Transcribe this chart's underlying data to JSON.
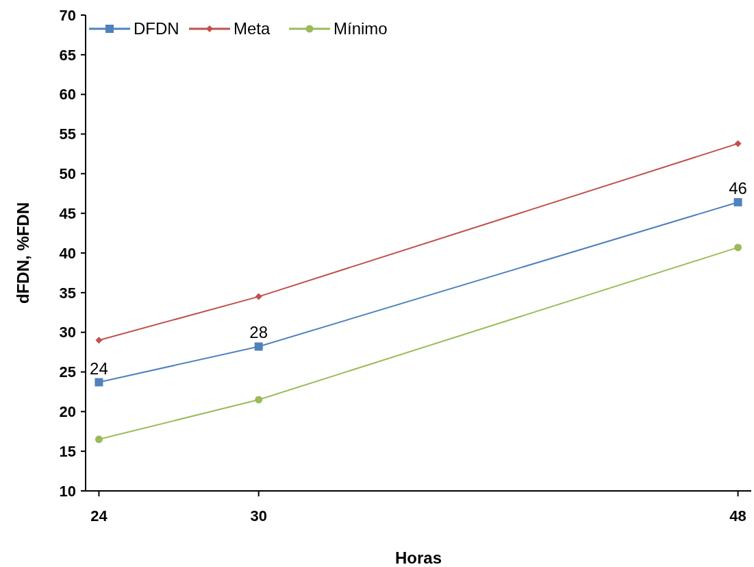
{
  "chart_data": {
    "type": "line",
    "xlabel": "Horas",
    "ylabel": "dFDN, %FDN",
    "x": [
      24,
      30,
      48
    ],
    "xlim": [
      23.5,
      48.5
    ],
    "xticks": [
      24,
      30,
      48
    ],
    "ylim": [
      10,
      70
    ],
    "yticks": [
      10,
      15,
      20,
      25,
      30,
      35,
      40,
      45,
      50,
      55,
      60,
      65,
      70
    ],
    "grid": false,
    "legend": "top left",
    "series": [
      {
        "name": "DFDN",
        "color": "#4f81bd",
        "marker": "square",
        "values": [
          23.7,
          28.2,
          46.4
        ],
        "value_labels": [
          "24",
          "28",
          "46"
        ]
      },
      {
        "name": "Meta",
        "color": "#c0504d",
        "marker": "diamond",
        "values": [
          29,
          34.5,
          53.8
        ]
      },
      {
        "name": "Mínimo",
        "color": "#9bbb59",
        "marker": "circle",
        "values": [
          16.5,
          21.5,
          40.7
        ]
      }
    ]
  }
}
